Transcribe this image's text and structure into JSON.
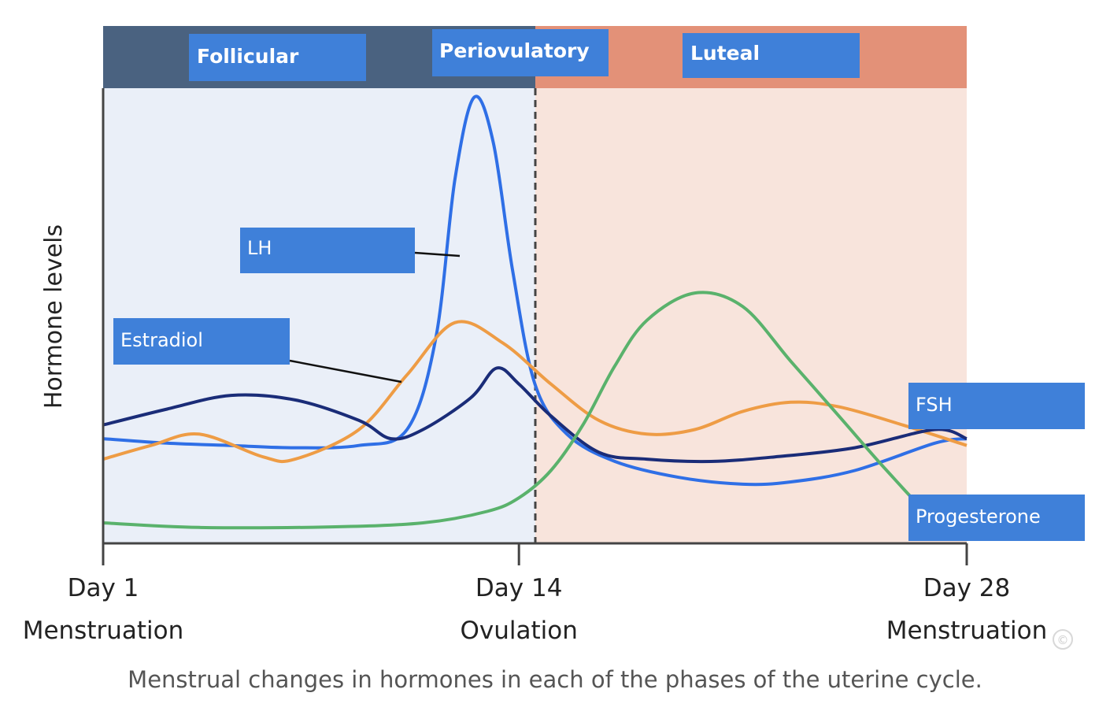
{
  "chart_data": {
    "type": "line",
    "x_ticks": [
      {
        "day": 1,
        "label": "Day 1",
        "sublabel": "Menstruation"
      },
      {
        "day": 14,
        "label": "Day 14",
        "sublabel": "Ovulation"
      },
      {
        "day": 28,
        "label": "Day 28",
        "sublabel": "Menstruation"
      }
    ],
    "xlim": [
      1,
      28
    ],
    "ylabel": "Hormone levels",
    "ylim": [
      0,
      100
    ],
    "phases": [
      {
        "name": "Follicular",
        "start": 1,
        "end": 14,
        "band_color": "#4a6280",
        "bg_color": "#eaeff8"
      },
      {
        "name": "Periovulatory",
        "start": 13,
        "end": 15,
        "band_color": "#4a6280",
        "bg_color": "#eaeff8"
      },
      {
        "name": "Luteal",
        "start": 14,
        "end": 28,
        "band_color": "#e39178",
        "bg_color": "#f8e4dc"
      }
    ],
    "ovulation_day": 14,
    "series": [
      {
        "name": "LH",
        "color": "#2f6fe6",
        "points": [
          [
            1,
            23
          ],
          [
            3,
            22
          ],
          [
            5,
            21.5
          ],
          [
            7,
            21
          ],
          [
            9,
            21.5
          ],
          [
            10.5,
            25
          ],
          [
            11.4,
            45
          ],
          [
            12,
            80
          ],
          [
            12.6,
            98
          ],
          [
            13.2,
            88
          ],
          [
            13.8,
            60
          ],
          [
            14.5,
            35
          ],
          [
            15.5,
            24
          ],
          [
            17,
            18
          ],
          [
            19,
            14.5
          ],
          [
            21,
            13
          ],
          [
            22.5,
            13.5
          ],
          [
            24.5,
            16
          ],
          [
            27,
            22
          ],
          [
            28,
            23
          ]
        ]
      },
      {
        "name": "Estradiol",
        "color": "#ee9c45",
        "points": [
          [
            1,
            18.5
          ],
          [
            2.5,
            21.5
          ],
          [
            4,
            24
          ],
          [
            6,
            19
          ],
          [
            7,
            18.5
          ],
          [
            9,
            25
          ],
          [
            10.5,
            37
          ],
          [
            12,
            48.5
          ],
          [
            13.5,
            44
          ],
          [
            15,
            35
          ],
          [
            16.5,
            27
          ],
          [
            18,
            24
          ],
          [
            19.5,
            25
          ],
          [
            21,
            29
          ],
          [
            22.5,
            31
          ],
          [
            24,
            30
          ],
          [
            26,
            26
          ],
          [
            28,
            21.5
          ]
        ]
      },
      {
        "name": "FSH",
        "color": "#1a2c78",
        "points": [
          [
            1,
            26
          ],
          [
            3,
            29.5
          ],
          [
            5,
            32.5
          ],
          [
            7,
            31.5
          ],
          [
            9,
            27
          ],
          [
            10,
            23
          ],
          [
            11,
            25
          ],
          [
            12.5,
            32
          ],
          [
            13.3,
            38.5
          ],
          [
            14,
            35
          ],
          [
            15,
            28
          ],
          [
            16.5,
            20
          ],
          [
            18,
            18.5
          ],
          [
            20,
            18
          ],
          [
            22,
            19
          ],
          [
            24.5,
            21
          ],
          [
            27,
            25
          ],
          [
            28,
            23
          ]
        ]
      },
      {
        "name": "Progesterone",
        "color": "#5ab26c",
        "points": [
          [
            1,
            4.5
          ],
          [
            4,
            3.5
          ],
          [
            8,
            3.6
          ],
          [
            11,
            4.5
          ],
          [
            13,
            7
          ],
          [
            14,
            10
          ],
          [
            15,
            16
          ],
          [
            16,
            26
          ],
          [
            17,
            39
          ],
          [
            18,
            49
          ],
          [
            19.5,
            55
          ],
          [
            21,
            52
          ],
          [
            22.5,
            40
          ],
          [
            24,
            28
          ],
          [
            25.5,
            16
          ],
          [
            27,
            5
          ],
          [
            28,
            1
          ]
        ]
      }
    ]
  },
  "labels": {
    "follicular": "Follicular",
    "periovulatory": "Periovulatory",
    "luteal": "Luteal",
    "lh": "LH",
    "estradiol": "Estradiol",
    "fsh": "FSH",
    "progesterone": "Progesterone",
    "copyright": "©"
  },
  "caption": "Menstrual changes in hormones in each of the phases of the uterine cycle."
}
